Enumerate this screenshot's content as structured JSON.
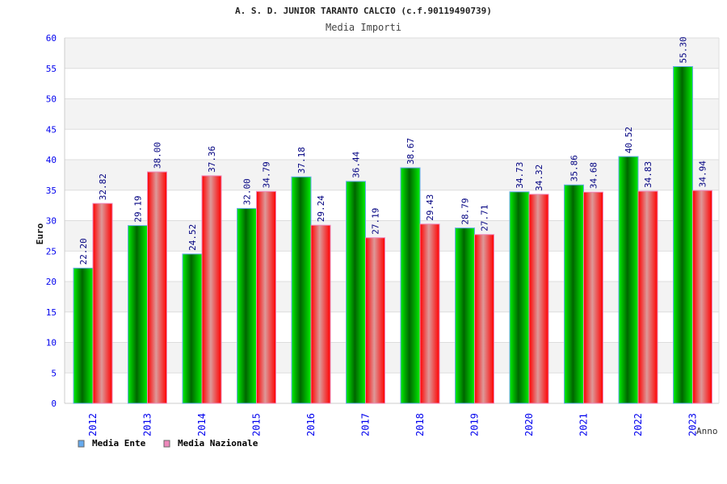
{
  "chart_data": {
    "type": "bar",
    "title": "A. S. D. JUNIOR TARANTO CALCIO (c.f.90119490739)",
    "subtitle": "Media Importi",
    "xlabel": "Anno",
    "ylabel": "Euro",
    "ylim": [
      0,
      60
    ],
    "yticks": [
      0,
      5,
      10,
      15,
      20,
      25,
      30,
      35,
      40,
      45,
      50,
      55,
      60
    ],
    "categories": [
      "2012",
      "2013",
      "2014",
      "2015",
      "2016",
      "2017",
      "2018",
      "2019",
      "2020",
      "2021",
      "2022",
      "2023"
    ],
    "series": [
      {
        "name": "Media Ente",
        "color": "#00aa00",
        "legend_color": "#66aaee",
        "border": "#66aaee",
        "values": [
          22.2,
          29.19,
          24.52,
          32.0,
          37.18,
          36.44,
          38.67,
          28.79,
          34.73,
          35.86,
          40.52,
          55.3
        ],
        "labels": [
          "22.20",
          "29.19",
          "24.52",
          "32.00",
          "37.18",
          "36.44",
          "38.67",
          "28.79",
          "34.73",
          "35.86",
          "40.52",
          "55.30"
        ]
      },
      {
        "name": "Media Nazionale",
        "color": "#ff0000",
        "legend_color": "#ee88bb",
        "border": "#ee88bb",
        "values": [
          32.82,
          38.0,
          37.36,
          34.79,
          29.24,
          27.19,
          29.43,
          27.71,
          34.32,
          34.68,
          34.83,
          34.94
        ],
        "labels": [
          "32.82",
          "38.00",
          "37.36",
          "34.79",
          "29.24",
          "27.19",
          "29.43",
          "27.71",
          "34.32",
          "34.68",
          "34.83",
          "34.94"
        ]
      }
    ],
    "grid": true,
    "legend_position": "bottom-left"
  }
}
